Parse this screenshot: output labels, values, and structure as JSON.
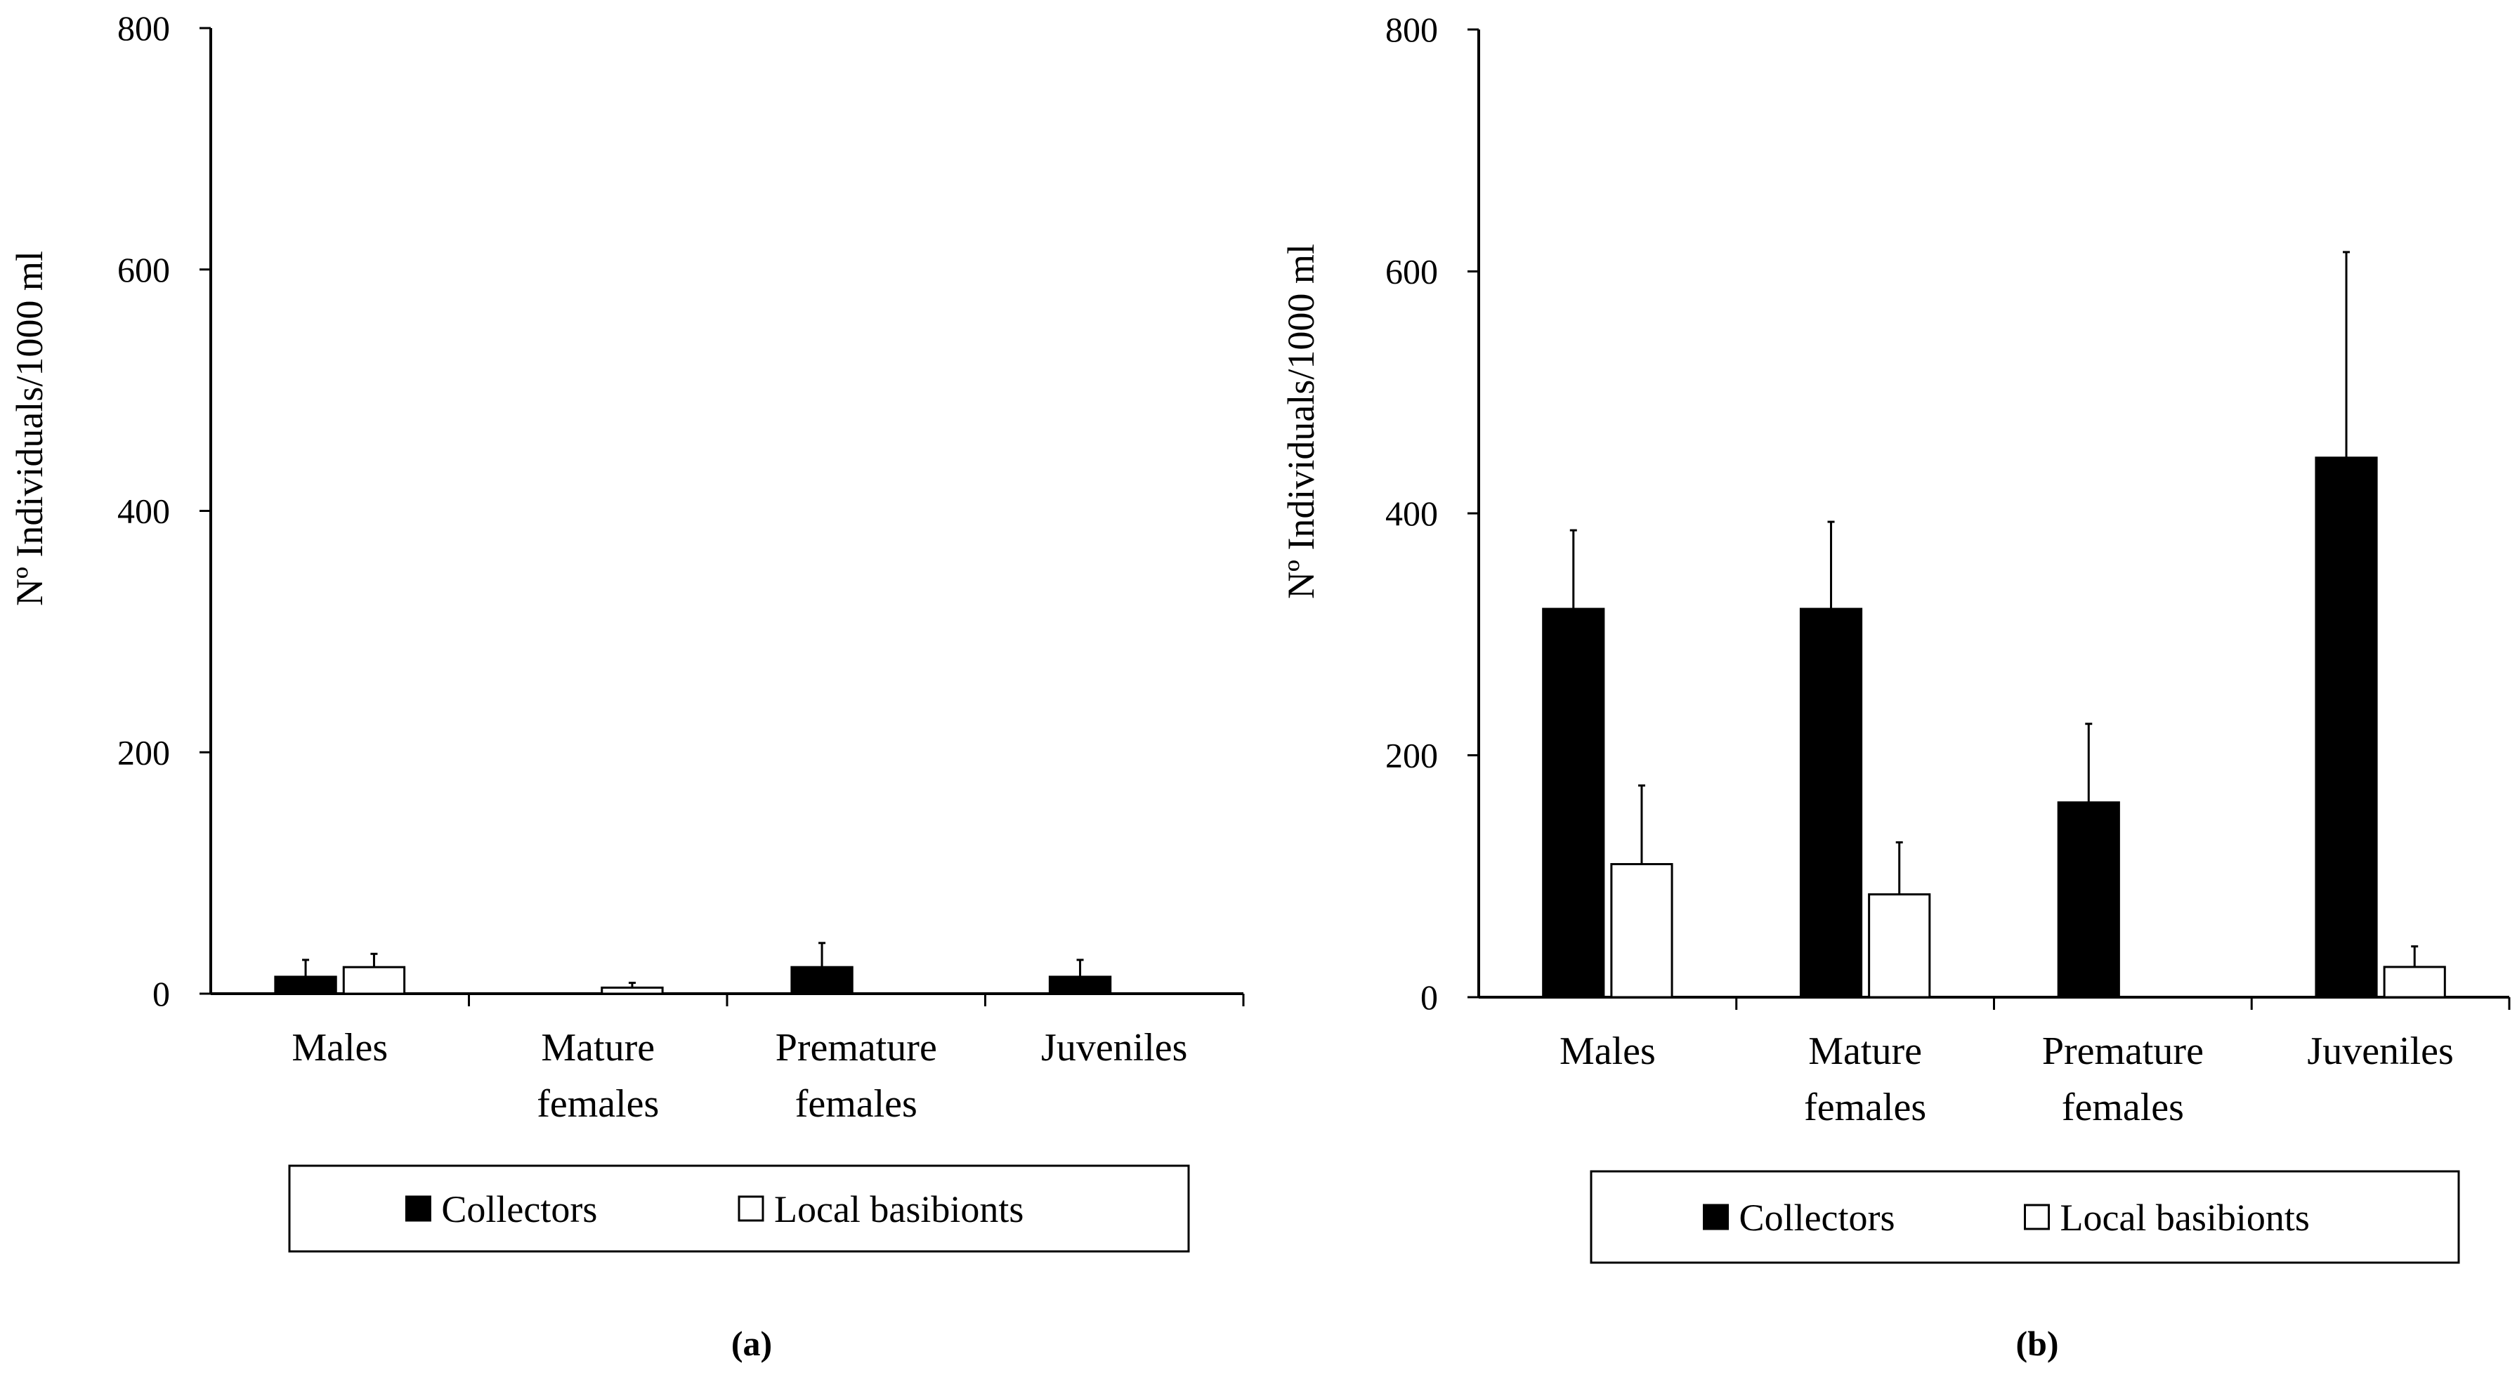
{
  "chart_data": [
    {
      "type": "bar",
      "caption": "(a)",
      "categories": [
        [
          "Males"
        ],
        [
          "Mature",
          "females"
        ],
        [
          "Premature",
          "females"
        ],
        [
          "Juveniles"
        ]
      ],
      "ylabel": "Nº Individuals/1000 ml",
      "ylim": [
        0,
        800
      ],
      "yticks": [
        "0",
        "200",
        "400",
        "600",
        "800"
      ],
      "series": [
        {
          "name": "Collectors",
          "color": "#000000",
          "values": [
            14,
            0,
            22,
            14
          ],
          "errors": [
            14,
            0,
            20,
            14
          ]
        },
        {
          "name": "Local basibionts",
          "color": "#ffffff",
          "values": [
            22,
            5,
            0,
            0
          ],
          "errors": [
            11,
            4,
            0,
            0
          ]
        }
      ]
    },
    {
      "type": "bar",
      "caption": "(b)",
      "categories": [
        [
          "Males"
        ],
        [
          "Mature",
          "females"
        ],
        [
          "Premature",
          "females"
        ],
        [
          "Juveniles"
        ]
      ],
      "ylabel": "Nº Individuals/1000 ml",
      "ylim": [
        0,
        800
      ],
      "yticks": [
        "0",
        "200",
        "400",
        "600",
        "800"
      ],
      "series": [
        {
          "name": "Collectors",
          "color": "#000000",
          "values": [
            321,
            321,
            161,
            446
          ],
          "errors": [
            65,
            72,
            65,
            170
          ]
        },
        {
          "name": "Local basibionts",
          "color": "#ffffff",
          "values": [
            110,
            85,
            0,
            25
          ],
          "errors": [
            65,
            43,
            0,
            17
          ]
        }
      ]
    }
  ]
}
